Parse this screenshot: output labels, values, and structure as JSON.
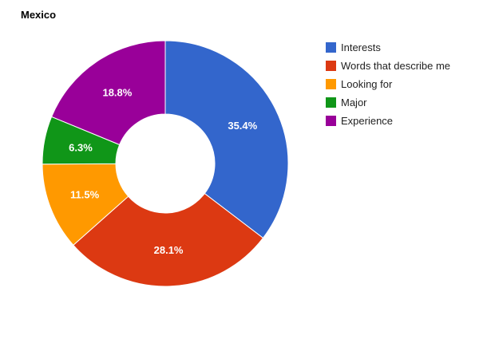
{
  "chart_data": {
    "type": "pie",
    "donut": true,
    "title": "Mexico",
    "legend_position": "right",
    "slices": [
      {
        "label": "Interests",
        "value": 35.4,
        "value_label": "35.4%",
        "color": "#3366cc"
      },
      {
        "label": "Words that describe me",
        "value": 28.1,
        "value_label": "28.1%",
        "color": "#dc3912"
      },
      {
        "label": "Looking for",
        "value": 11.5,
        "value_label": "11.5%",
        "color": "#ff9900"
      },
      {
        "label": "Major",
        "value": 6.3,
        "value_label": "6.3%",
        "color": "#109618"
      },
      {
        "label": "Experience",
        "value": 18.8,
        "value_label": "18.8%",
        "color": "#990099"
      }
    ]
  }
}
